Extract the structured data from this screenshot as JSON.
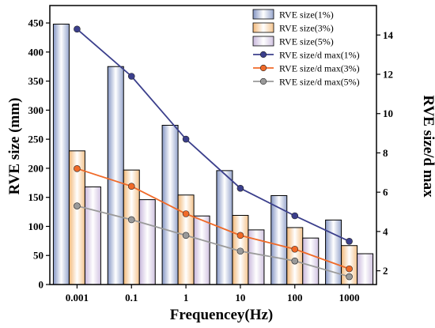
{
  "chart_data": {
    "type": "bar+line",
    "xlabel": "Frequencey(Hz)",
    "ylabel_left": "RVE size (mm)",
    "ylabel_right": "RVE size/d max",
    "categories": [
      "0.001",
      "0.1",
      "1",
      "10",
      "100",
      "1000"
    ],
    "y_left_range": [
      0,
      480
    ],
    "y_left_ticks": [
      "0",
      "50",
      "100",
      "150",
      "200",
      "250",
      "300",
      "350",
      "400",
      "450"
    ],
    "y_right_range": [
      1.3,
      15.5
    ],
    "y_right_ticks": [
      "2",
      "4",
      "6",
      "8",
      "10",
      "12",
      "14"
    ],
    "bar_series": [
      {
        "name": "RVE size(1%)",
        "values": [
          448,
          375,
          274,
          196,
          153,
          111
        ],
        "color": "#8596c4"
      },
      {
        "name": "RVE size(3%)",
        "values": [
          230,
          197,
          154,
          119,
          98,
          67
        ],
        "color": "#f2b97a"
      },
      {
        "name": "RVE size(5%)",
        "values": [
          168,
          146,
          118,
          94,
          80,
          53
        ],
        "color": "#c9b8dc"
      }
    ],
    "line_series": [
      {
        "name": "RVE size/d max(1%)",
        "values": [
          14.3,
          11.9,
          8.7,
          6.2,
          4.8,
          3.5
        ],
        "color": "#3b3f8c"
      },
      {
        "name": "RVE size/d max(3%)",
        "values": [
          7.2,
          6.3,
          4.9,
          3.8,
          3.1,
          2.1
        ],
        "color": "#f06a28"
      },
      {
        "name": "RVE size/d max(5%)",
        "values": [
          5.3,
          4.6,
          3.8,
          3.0,
          2.5,
          1.7
        ],
        "color": "#9a9a9a"
      }
    ],
    "legend_position": "top-right"
  }
}
